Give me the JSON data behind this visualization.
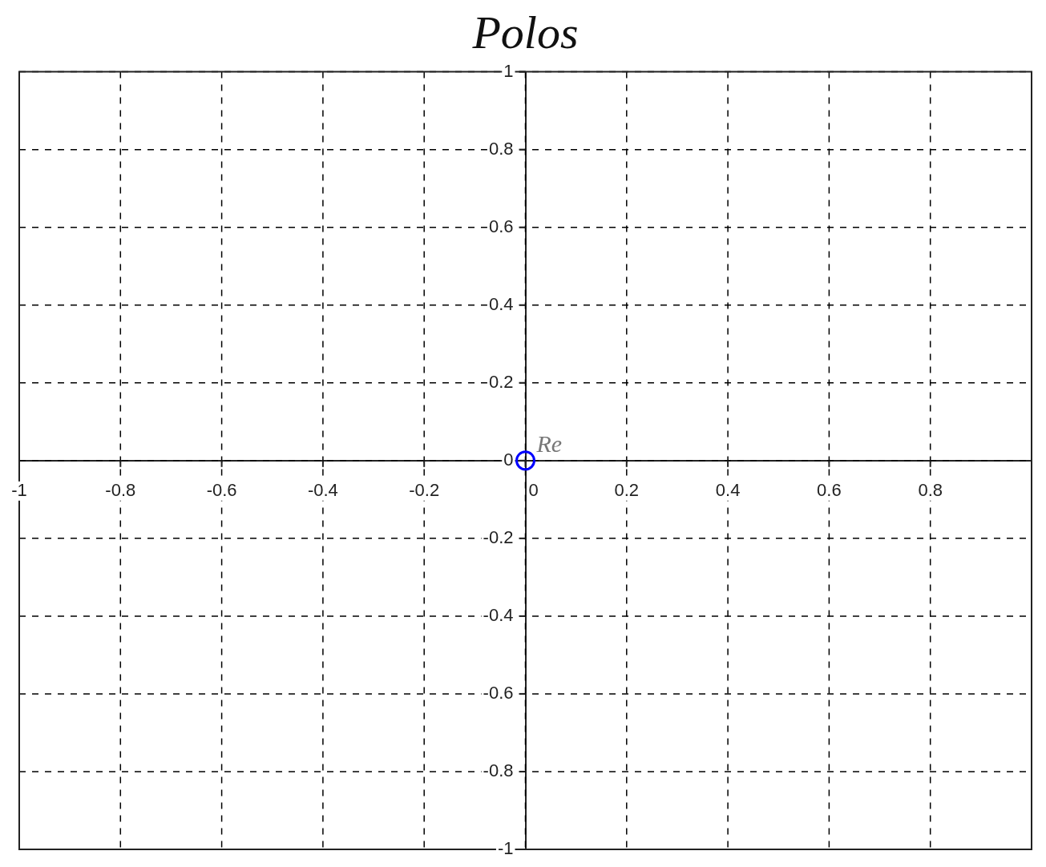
{
  "chart_data": {
    "type": "scatter",
    "title": "Polos",
    "xlabel": "Re",
    "x": [
      0
    ],
    "values": [
      0
    ],
    "color": "#0000ff",
    "marker": "circle",
    "xlim": [
      -1,
      1
    ],
    "ylim": [
      -1,
      1
    ],
    "xticks": [
      -1,
      -0.8,
      -0.6,
      -0.4,
      -0.2,
      0,
      0.2,
      0.4,
      0.6,
      0.8,
      {
        "value": 1,
        "label": null
      }
    ],
    "yticks": [
      -1,
      -0.8,
      -0.6,
      -0.4,
      -0.2,
      0,
      0.2,
      0.4,
      0.6,
      0.8,
      1
    ],
    "grid": true
  }
}
